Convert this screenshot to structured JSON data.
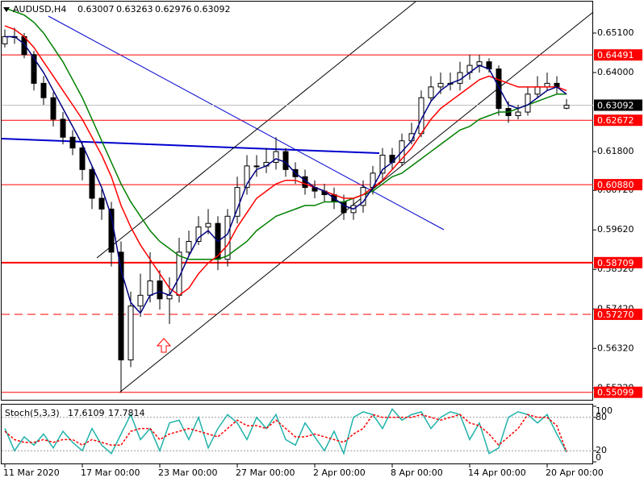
{
  "chart_data": {
    "type": "candlestick",
    "header": {
      "symbol": "AUDUSD,H4",
      "ohlc": [
        0.63007,
        0.63263,
        0.62976,
        0.63092
      ]
    },
    "ylim": [
      0.55025,
      0.6602
    ],
    "yticks": [
      {
        "value": 0.651,
        "label": "0.65100"
      },
      {
        "value": 0.64,
        "label": "0.64000"
      },
      {
        "value": 0.618,
        "label": "0.61800"
      },
      {
        "value": 0.6072,
        "label": "0.60720"
      },
      {
        "value": 0.5962,
        "label": "0.59620"
      },
      {
        "value": 0.5852,
        "label": "0.58520"
      },
      {
        "value": 0.5742,
        "label": "0.57420"
      },
      {
        "value": 0.5632,
        "label": "0.56320"
      },
      {
        "value": 0.5522,
        "label": "0.55220"
      }
    ],
    "xticks": [
      {
        "value": 0,
        "label": "11 Mar 2020"
      },
      {
        "value": 8,
        "label": "17 Mar 00:00"
      },
      {
        "value": 16,
        "label": "23 Mar 00:00"
      },
      {
        "value": 24,
        "label": "27 Mar 00:00"
      },
      {
        "value": 32,
        "label": "2 Apr 00:00"
      },
      {
        "value": 40,
        "label": "8 Apr 00:00"
      },
      {
        "value": 48,
        "label": "14 Apr 00:00"
      },
      {
        "value": 56,
        "label": "20 Apr 00:00"
      }
    ],
    "open": [
      0.648,
      0.65,
      0.65,
      0.645,
      0.637,
      0.633,
      0.627,
      0.622,
      0.619,
      0.613,
      0.605,
      0.602,
      0.59,
      0.56,
      0.575,
      0.578,
      0.582,
      0.577,
      0.578,
      0.59,
      0.593,
      0.597,
      0.598,
      0.588,
      0.6,
      0.608,
      0.614,
      0.614,
      0.615,
      0.618,
      0.613,
      0.611,
      0.608,
      0.607,
      0.606,
      0.604,
      0.601,
      0.603,
      0.608,
      0.612,
      0.617,
      0.615,
      0.621,
      0.623,
      0.633,
      0.636,
      0.637,
      0.637,
      0.64,
      0.642,
      0.643,
      0.641,
      0.63,
      0.628,
      0.629,
      0.634,
      0.636,
      0.637,
      0.63007
    ],
    "high": [
      0.652,
      0.6525,
      0.651,
      0.646,
      0.639,
      0.6345,
      0.629,
      0.624,
      0.6205,
      0.614,
      0.6075,
      0.604,
      0.593,
      0.579,
      0.584,
      0.59,
      0.585,
      0.583,
      0.594,
      0.596,
      0.6,
      0.602,
      0.6,
      0.602,
      0.611,
      0.617,
      0.617,
      0.619,
      0.622,
      0.619,
      0.615,
      0.613,
      0.61,
      0.609,
      0.608,
      0.606,
      0.605,
      0.61,
      0.614,
      0.619,
      0.619,
      0.623,
      0.626,
      0.635,
      0.639,
      0.64,
      0.64,
      0.643,
      0.645,
      0.6449,
      0.644,
      0.642,
      0.632,
      0.631,
      0.636,
      0.639,
      0.64,
      0.639,
      0.63263
    ],
    "low": [
      0.647,
      0.648,
      0.644,
      0.635,
      0.631,
      0.625,
      0.62,
      0.617,
      0.61,
      0.602,
      0.599,
      0.586,
      0.55099,
      0.558,
      0.572,
      0.576,
      0.574,
      0.57,
      0.576,
      0.589,
      0.592,
      0.595,
      0.585,
      0.586,
      0.598,
      0.606,
      0.611,
      0.612,
      0.613,
      0.611,
      0.609,
      0.606,
      0.605,
      0.604,
      0.602,
      0.599,
      0.599,
      0.601,
      0.606,
      0.61,
      0.613,
      0.614,
      0.62,
      0.622,
      0.632,
      0.634,
      0.635,
      0.635,
      0.638,
      0.64,
      0.64,
      0.628,
      0.626,
      0.627,
      0.628,
      0.633,
      0.635,
      0.634,
      0.62976
    ],
    "close": [
      0.65,
      0.65,
      0.645,
      0.637,
      0.633,
      0.627,
      0.622,
      0.619,
      0.613,
      0.605,
      0.602,
      0.59,
      0.56,
      0.575,
      0.578,
      0.582,
      0.577,
      0.578,
      0.59,
      0.593,
      0.597,
      0.598,
      0.588,
      0.6,
      0.608,
      0.614,
      0.614,
      0.615,
      0.618,
      0.613,
      0.611,
      0.608,
      0.607,
      0.606,
      0.604,
      0.601,
      0.603,
      0.608,
      0.612,
      0.617,
      0.615,
      0.621,
      0.623,
      0.633,
      0.636,
      0.637,
      0.637,
      0.64,
      0.642,
      0.643,
      0.641,
      0.63,
      0.628,
      0.629,
      0.634,
      0.636,
      0.637,
      0.636,
      0.63092
    ],
    "lines": [
      {
        "color": "#008000",
        "values": [
          0.658,
          0.657,
          0.656,
          0.654,
          0.651,
          0.647,
          0.643,
          0.638,
          0.633,
          0.627,
          0.621,
          0.615,
          0.609,
          0.604,
          0.6,
          0.596,
          0.593,
          0.591,
          0.589,
          0.588,
          0.588,
          0.588,
          0.588,
          0.589,
          0.591,
          0.593,
          0.596,
          0.598,
          0.6,
          0.601,
          0.602,
          0.603,
          0.603,
          0.604,
          0.604,
          0.604,
          0.605,
          0.606,
          0.607,
          0.609,
          0.611,
          0.612,
          0.614,
          0.616,
          0.618,
          0.62,
          0.622,
          0.624,
          0.625,
          0.627,
          0.628,
          0.629,
          0.629,
          0.63,
          0.631,
          0.632,
          0.633,
          0.634,
          0.634
        ]
      },
      {
        "color": "#ff0000",
        "values": [
          0.653,
          0.652,
          0.65,
          0.647,
          0.643,
          0.639,
          0.635,
          0.631,
          0.627,
          0.622,
          0.617,
          0.611,
          0.603,
          0.597,
          0.592,
          0.588,
          0.584,
          0.58,
          0.578,
          0.58,
          0.584,
          0.587,
          0.589,
          0.592,
          0.597,
          0.601,
          0.605,
          0.607,
          0.609,
          0.61,
          0.61,
          0.609,
          0.608,
          0.607,
          0.606,
          0.605,
          0.605,
          0.606,
          0.608,
          0.61,
          0.613,
          0.616,
          0.619,
          0.623,
          0.627,
          0.63,
          0.632,
          0.634,
          0.636,
          0.638,
          0.639,
          0.638,
          0.637,
          0.636,
          0.636,
          0.636,
          0.636,
          0.636,
          0.635
        ]
      },
      {
        "color": "#000080",
        "values": [
          0.65,
          0.65,
          0.648,
          0.644,
          0.64,
          0.635,
          0.63,
          0.625,
          0.62,
          0.614,
          0.608,
          0.6,
          0.585,
          0.576,
          0.573,
          0.578,
          0.579,
          0.578,
          0.583,
          0.589,
          0.594,
          0.596,
          0.593,
          0.595,
          0.602,
          0.609,
          0.613,
          0.614,
          0.616,
          0.615,
          0.612,
          0.61,
          0.608,
          0.607,
          0.605,
          0.603,
          0.602,
          0.604,
          0.608,
          0.613,
          0.615,
          0.618,
          0.621,
          0.627,
          0.632,
          0.635,
          0.637,
          0.638,
          0.64,
          0.642,
          0.641,
          0.636,
          0.631,
          0.63,
          0.631,
          0.633,
          0.635,
          0.636,
          0.634
        ]
      }
    ],
    "levels": [
      {
        "price": 0.64491,
        "color": "#ff0000"
      },
      {
        "price": 0.62672,
        "color": "#ff0000"
      },
      {
        "price": 0.6088,
        "label": "0.60880",
        "color": "#ff0000"
      },
      {
        "price": 0.58709,
        "color": "#ff0000",
        "width": 2
      },
      {
        "price": 0.5727,
        "label": "0.57270",
        "color": "#ff0000",
        "dashed": true
      },
      {
        "price": 0.55099,
        "color": "#ff0000"
      }
    ],
    "last_price": {
      "price": 0.63092,
      "color": "#c0c0c0"
    },
    "stochastic": {
      "title": "Stoch(5,3,3)",
      "main_value": 17.6109,
      "signal_value": 17.7814,
      "ylim": [
        0,
        100
      ],
      "yticks": [
        0,
        20,
        80,
        100
      ],
      "level_lines": [
        20,
        80
      ],
      "main": {
        "color": "#20b2aa",
        "values": [
          60,
          20,
          45,
          30,
          50,
          25,
          55,
          35,
          20,
          60,
          30,
          15,
          50,
          85,
          40,
          60,
          20,
          70,
          75,
          40,
          80,
          25,
          60,
          85,
          70,
          40,
          80,
          60,
          85,
          40,
          30,
          70,
          45,
          20,
          55,
          15,
          80,
          90,
          85,
          60,
          95,
          75,
          85,
          90,
          60,
          80,
          90,
          85,
          40,
          70,
          15,
          25,
          80,
          90,
          85,
          70,
          85,
          50,
          17.6109
        ]
      },
      "signal": {
        "color": "#ff0000",
        "values": [
          55,
          40,
          35,
          35,
          40,
          35,
          40,
          40,
          30,
          40,
          35,
          30,
          30,
          55,
          60,
          60,
          40,
          50,
          55,
          60,
          55,
          50,
          45,
          60,
          75,
          65,
          65,
          60,
          75,
          60,
          45,
          45,
          50,
          45,
          40,
          35,
          50,
          60,
          85,
          80,
          80,
          80,
          80,
          85,
          80,
          75,
          80,
          85,
          70,
          65,
          50,
          30,
          45,
          60,
          85,
          80,
          80,
          65,
          17.7814
        ]
      }
    }
  }
}
